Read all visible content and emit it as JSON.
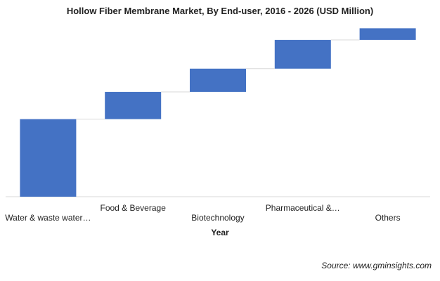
{
  "chart_data": {
    "type": "bar",
    "subtype": "waterfall",
    "title": "Hollow Fiber Membrane Market, By End-user, 2016 - 2026 (USD Million)",
    "xlabel": "Year",
    "ylabel": "",
    "categories": [
      "Water & waste water…",
      "Food & Beverage",
      "Biotechnology",
      "Pharmaceutical &…",
      "Others"
    ],
    "values": [
      100,
      35,
      30,
      37,
      15
    ],
    "ylim": [
      0,
      220
    ],
    "legend": "none",
    "grid": false,
    "color": "#4472C4"
  },
  "source": "Source: www.gminsights.com"
}
